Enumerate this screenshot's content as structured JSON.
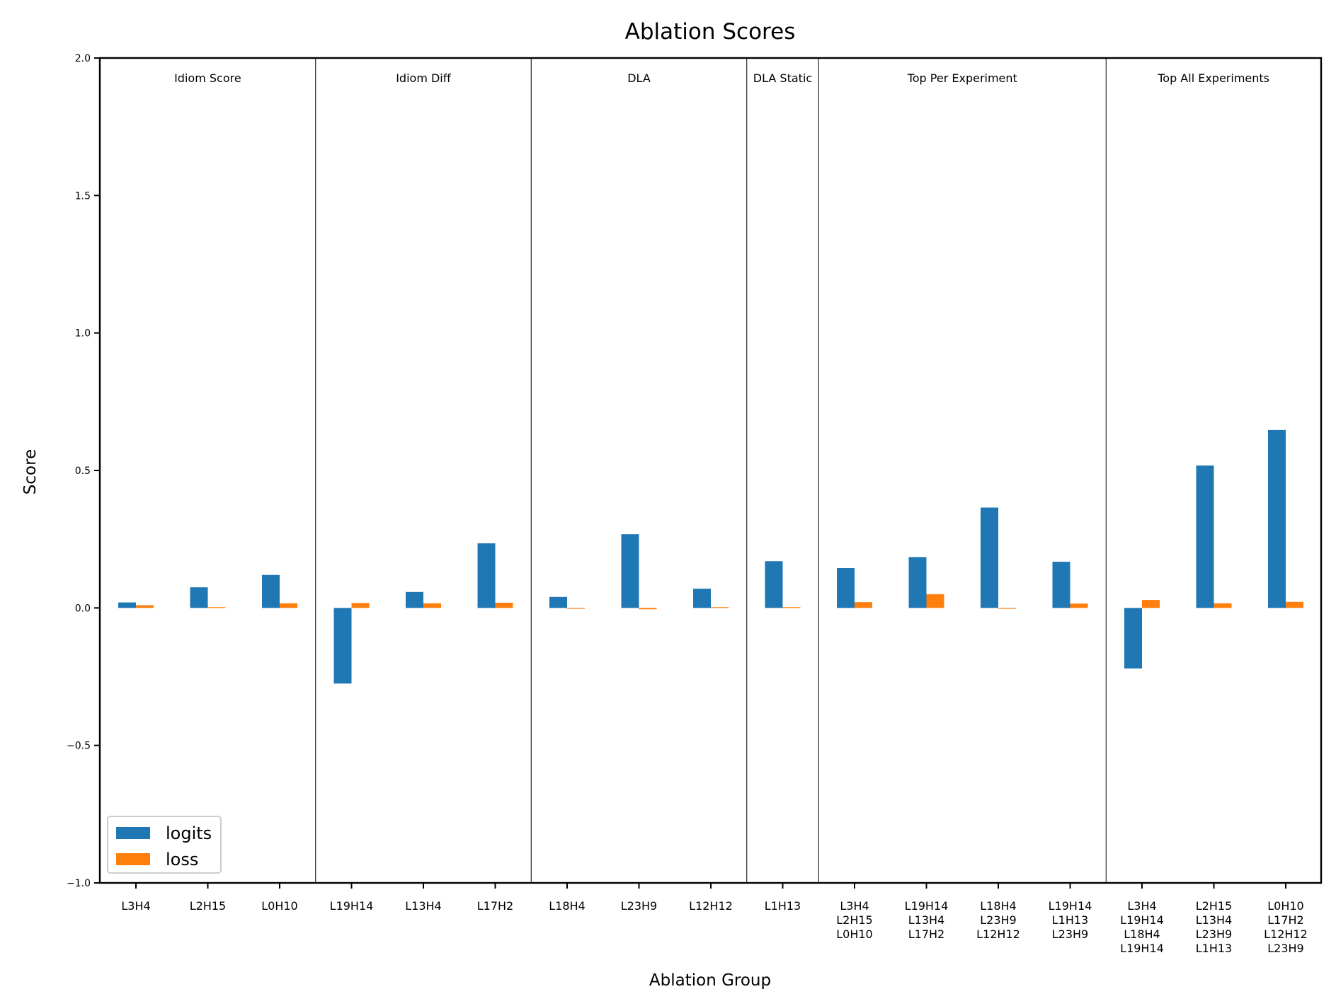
{
  "chart_data": {
    "type": "bar",
    "title": "Ablation Scores",
    "xlabel": "Ablation Group",
    "ylabel": "Score",
    "ylim": [
      -1.0,
      2.0
    ],
    "yticks": [
      -1.0,
      -0.5,
      0.0,
      0.5,
      1.0,
      1.5,
      2.0
    ],
    "ytick_labels": [
      "−1.0",
      "−0.5",
      "0.0",
      "0.5",
      "1.0",
      "1.5",
      "2.0"
    ],
    "legend_position": "lower-left",
    "groups": [
      {
        "label": "Idiom Score",
        "start": 0,
        "count": 3
      },
      {
        "label": "Idiom Diff",
        "start": 3,
        "count": 3
      },
      {
        "label": "DLA",
        "start": 6,
        "count": 3
      },
      {
        "label": "DLA Static",
        "start": 9,
        "count": 1
      },
      {
        "label": "Top Per Experiment",
        "start": 10,
        "count": 4
      },
      {
        "label": "Top All Experiments",
        "start": 14,
        "count": 3
      }
    ],
    "categories": [
      [
        "L3H4"
      ],
      [
        "L2H15"
      ],
      [
        "L0H10"
      ],
      [
        "L19H14"
      ],
      [
        "L13H4"
      ],
      [
        "L17H2"
      ],
      [
        "L18H4"
      ],
      [
        "L23H9"
      ],
      [
        "L12H12"
      ],
      [
        "L1H13"
      ],
      [
        "L3H4",
        "L2H15",
        "L0H10"
      ],
      [
        "L19H14",
        "L13H4",
        "L17H2"
      ],
      [
        "L18H4",
        "L23H9",
        "L12H12"
      ],
      [
        "L19H14",
        "L1H13",
        "L23H9"
      ],
      [
        "L3H4",
        "L19H14",
        "L18H4",
        "L19H14"
      ],
      [
        "L2H15",
        "L13H4",
        "L23H9",
        "L1H13"
      ],
      [
        "L0H10",
        "L17H2",
        "L12H12",
        "L23H9"
      ]
    ],
    "series": [
      {
        "name": "logits",
        "color": "#1f77b4",
        "values": [
          0.02,
          0.075,
          0.12,
          -0.275,
          0.058,
          0.235,
          0.04,
          0.268,
          0.07,
          0.17,
          0.145,
          0.185,
          0.365,
          0.168,
          -0.22,
          0.518,
          0.647
        ]
      },
      {
        "name": "loss",
        "color": "#ff7f0e",
        "values": [
          0.01,
          0.003,
          0.017,
          0.018,
          0.017,
          0.019,
          0.0,
          -0.005,
          0.003,
          0.003,
          0.021,
          0.05,
          -0.002,
          0.016,
          0.029,
          0.017,
          0.022
        ]
      }
    ]
  }
}
